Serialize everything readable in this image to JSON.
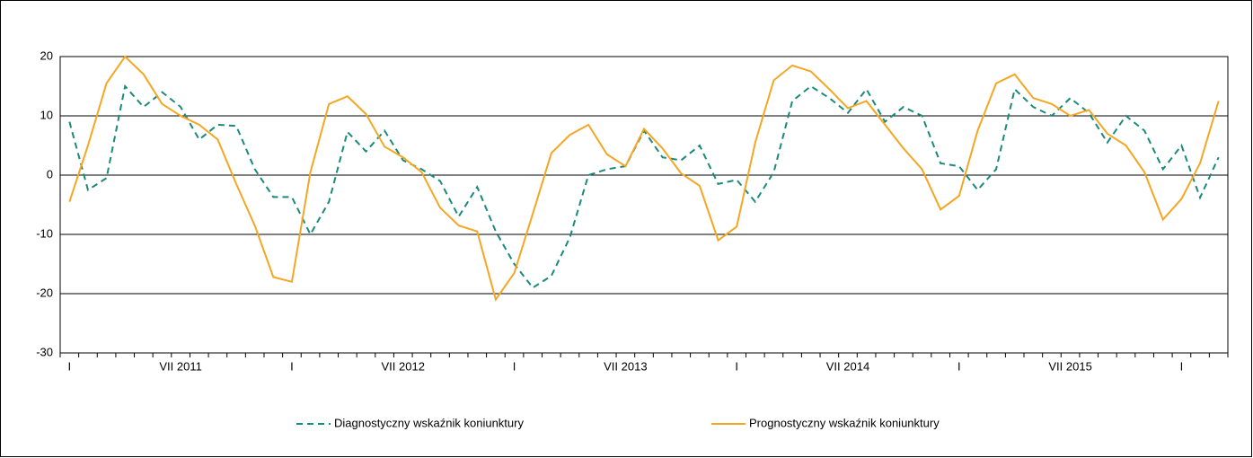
{
  "chart_data": {
    "type": "line",
    "categories": [
      "I",
      null,
      null,
      null,
      null,
      null,
      "VII 2011",
      null,
      null,
      null,
      null,
      null,
      "I",
      null,
      null,
      null,
      null,
      null,
      "VII 2012",
      null,
      null,
      null,
      null,
      null,
      "I",
      null,
      null,
      null,
      null,
      null,
      "VII 2013",
      null,
      null,
      null,
      null,
      null,
      "I",
      null,
      null,
      null,
      null,
      null,
      "VII 2014",
      null,
      null,
      null,
      null,
      null,
      "I",
      null,
      null,
      null,
      null,
      null,
      "VII 2015",
      null,
      null,
      null,
      null,
      null,
      "I",
      null,
      null
    ],
    "series": [
      {
        "name": "Diagnostyczny wskaźnik koniunktury",
        "color": "#1a8a7a",
        "dash": true,
        "values": [
          9,
          -2.5,
          -0.5,
          15,
          11.5,
          14,
          11.5,
          6,
          8.5,
          8.3,
          1,
          -3.7,
          -3.7,
          -10,
          -4.5,
          7.3,
          4,
          7.5,
          2.5,
          1,
          -1,
          -7,
          -2,
          -9.5,
          -15,
          -19,
          -17,
          -10.5,
          0,
          1,
          1.5,
          7.5,
          3,
          2.5,
          5,
          -1.5,
          -0.8,
          -4.5,
          0.5,
          12.5,
          15,
          13,
          10.5,
          14.5,
          9,
          11.5,
          10,
          2,
          1.5,
          -2.5,
          1,
          14.5,
          11.5,
          10,
          13,
          10.5,
          5.5,
          10,
          7.5,
          1,
          5,
          -3.8,
          3
        ]
      },
      {
        "name": "Prognostyczny wskaźnik koniunktury",
        "color": "#f5a623",
        "dash": false,
        "values": [
          -4.5,
          5,
          15.5,
          20,
          17,
          12,
          10,
          8.5,
          6,
          -1.5,
          -8.5,
          -17.2,
          -18,
          0.5,
          12,
          13.3,
          10.3,
          4.8,
          3,
          0.5,
          -5.5,
          -8.5,
          -9.5,
          -21,
          -16.5,
          -6.5,
          3.7,
          6.8,
          8.5,
          3.5,
          1.5,
          7.8,
          4.5,
          0.3,
          -1.8,
          -11,
          -8.7,
          5.5,
          16,
          18.5,
          17.5,
          14.5,
          11.3,
          12.5,
          8.5,
          4.5,
          1,
          -5.8,
          -3.5,
          7.5,
          15.5,
          17,
          13,
          12,
          10,
          11,
          7,
          5,
          0.5,
          -7.5,
          -4,
          2,
          12.5
        ]
      }
    ],
    "ylim": [
      -30,
      20
    ],
    "yticks": [
      -30,
      -20,
      -10,
      0,
      10,
      20
    ],
    "grid": true
  }
}
